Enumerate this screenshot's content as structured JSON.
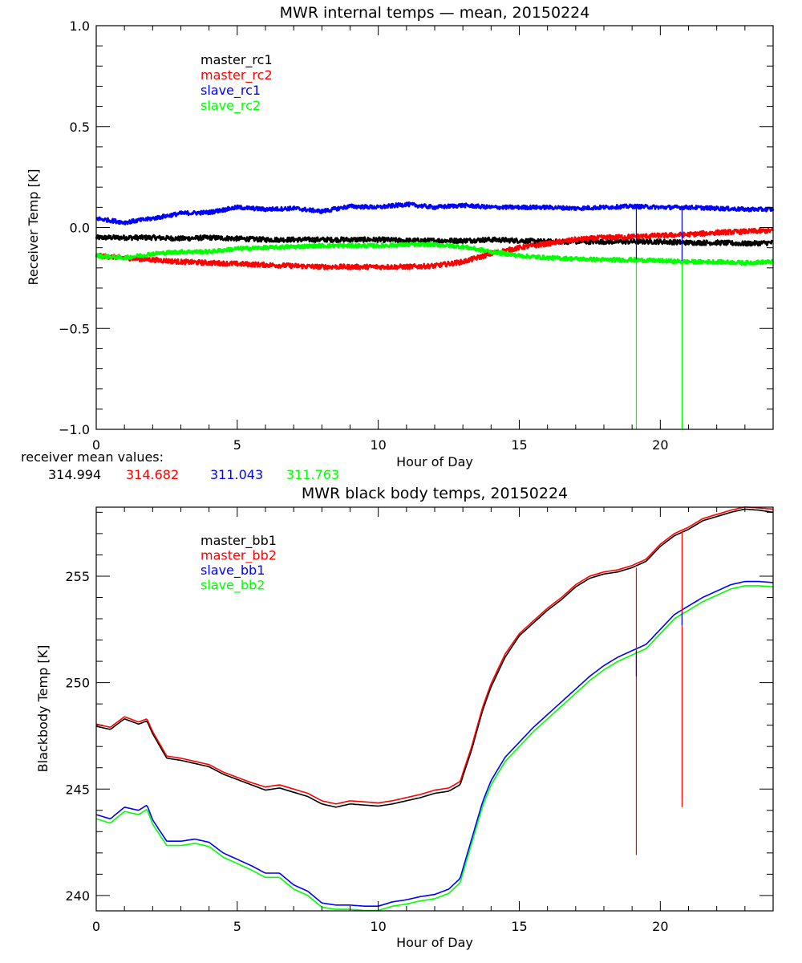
{
  "chart_data": [
    {
      "type": "line",
      "title": "MWR internal temps — mean, 20150224",
      "xlabel": "Hour of Day",
      "ylabel": "Receiver Temp [K]",
      "xlim": [
        0,
        24
      ],
      "ylim": [
        -1.0,
        1.0
      ],
      "x_ticks": [
        0,
        5,
        10,
        15,
        20
      ],
      "x_tick_labels": [
        "0",
        "5",
        "10",
        "15",
        "20"
      ],
      "x_minor_step": 1,
      "y_ticks": [
        -1.0,
        -0.5,
        0.0,
        0.5,
        1.0
      ],
      "y_tick_labels": [
        "−1.0",
        "−0.5",
        "0.0",
        "0.5",
        "1.0"
      ],
      "y_minor_step": 0.1,
      "grid": false,
      "legend_position": "top-left inside",
      "x": [
        0,
        1,
        2,
        3,
        4,
        5,
        6,
        7,
        8,
        9,
        10,
        11,
        12,
        13,
        14,
        15,
        16,
        17,
        18,
        19,
        20,
        21,
        22,
        23,
        24
      ],
      "series": [
        {
          "name": "master_rc1",
          "color": "#000000",
          "noise": 0.012,
          "values": [
            -0.05,
            -0.05,
            -0.05,
            -0.055,
            -0.05,
            -0.055,
            -0.06,
            -0.06,
            -0.06,
            -0.06,
            -0.06,
            -0.065,
            -0.065,
            -0.065,
            -0.06,
            -0.065,
            -0.07,
            -0.07,
            -0.07,
            -0.07,
            -0.07,
            -0.075,
            -0.075,
            -0.08,
            -0.075
          ]
        },
        {
          "name": "master_rc2",
          "color": "#ff0000",
          "noise": 0.012,
          "values": [
            -0.14,
            -0.15,
            -0.16,
            -0.17,
            -0.175,
            -0.18,
            -0.185,
            -0.19,
            -0.195,
            -0.195,
            -0.195,
            -0.195,
            -0.19,
            -0.17,
            -0.13,
            -0.1,
            -0.08,
            -0.06,
            -0.05,
            -0.045,
            -0.04,
            -0.035,
            -0.025,
            -0.02,
            -0.015
          ]
        },
        {
          "name": "slave_rc1",
          "color": "#0000ff",
          "noise": 0.01,
          "values": [
            0.045,
            0.025,
            0.045,
            0.07,
            0.075,
            0.1,
            0.09,
            0.095,
            0.08,
            0.105,
            0.1,
            0.115,
            0.1,
            0.11,
            0.1,
            0.1,
            0.1,
            0.095,
            0.1,
            0.105,
            0.1,
            0.1,
            0.095,
            0.09,
            0.09
          ]
        },
        {
          "name": "slave_rc2",
          "color": "#00ff00",
          "noise": 0.01,
          "values": [
            -0.14,
            -0.15,
            -0.13,
            -0.12,
            -0.12,
            -0.105,
            -0.1,
            -0.095,
            -0.09,
            -0.09,
            -0.09,
            -0.085,
            -0.085,
            -0.095,
            -0.12,
            -0.14,
            -0.15,
            -0.155,
            -0.16,
            -0.16,
            -0.165,
            -0.17,
            -0.17,
            -0.175,
            -0.17
          ]
        }
      ],
      "spikes": [
        {
          "hour": 19.15,
          "color": "#00ff00",
          "from": -0.16,
          "to": -1.0
        },
        {
          "hour": 19.15,
          "color": "#0000ff",
          "from": 0.1,
          "to": -0.16
        },
        {
          "hour": 20.77,
          "color": "#00ff00",
          "from": -0.165,
          "to": -1.0
        },
        {
          "hour": 20.77,
          "color": "#0000ff",
          "from": 0.1,
          "to": -0.165
        }
      ],
      "annotation": {
        "label": "receiver mean values:",
        "values": [
          {
            "text": "314.994",
            "color": "#000000"
          },
          {
            "text": "314.682",
            "color": "#ff0000"
          },
          {
            "text": "311.043",
            "color": "#0000ff"
          },
          {
            "text": "311.763",
            "color": "#00ff00"
          }
        ]
      }
    },
    {
      "type": "line",
      "title": "MWR black body temps, 20150224",
      "xlabel": "Hour of Day",
      "ylabel": "Blackbody Temp [K]",
      "xlim": [
        0,
        24
      ],
      "ylim": [
        239.28,
        258.24
      ],
      "x_ticks": [
        0,
        5,
        10,
        15,
        20
      ],
      "x_tick_labels": [
        "0",
        "5",
        "10",
        "15",
        "20"
      ],
      "x_minor_step": 1,
      "y_ticks": [
        240,
        245,
        250,
        255
      ],
      "y_tick_labels": [
        "240",
        "245",
        "250",
        "255"
      ],
      "y_minor_step": 1,
      "grid": false,
      "legend_position": "top-left inside",
      "x": [
        0,
        0.5,
        1,
        1.5,
        1.8,
        2,
        2.5,
        3,
        3.5,
        4,
        4.5,
        5,
        5.5,
        6,
        6.5,
        7,
        7.5,
        8,
        8.5,
        9,
        9.5,
        10,
        10.5,
        11,
        11.5,
        12,
        12.5,
        12.9,
        13.3,
        13.7,
        14,
        14.5,
        15,
        15.5,
        16,
        16.5,
        17,
        17.5,
        18,
        18.5,
        19,
        19.5,
        20,
        20.5,
        21,
        21.5,
        22,
        22.5,
        23,
        23.5,
        24
      ],
      "series": [
        {
          "name": "master_bb1",
          "color": "#000000",
          "values": [
            247.95,
            247.8,
            248.3,
            248.05,
            248.2,
            247.6,
            246.45,
            246.35,
            246.2,
            246.05,
            245.7,
            245.45,
            245.2,
            244.95,
            245.05,
            244.85,
            244.65,
            244.3,
            244.15,
            244.3,
            244.25,
            244.2,
            244.3,
            244.45,
            244.6,
            244.8,
            244.9,
            245.2,
            246.8,
            248.7,
            249.8,
            251.2,
            252.2,
            252.8,
            253.4,
            253.9,
            254.5,
            254.9,
            255.1,
            255.2,
            255.4,
            255.7,
            256.4,
            256.9,
            257.2,
            257.6,
            257.8,
            258.0,
            258.15,
            258.1,
            258.0
          ]
        },
        {
          "name": "master_bb2",
          "color": "#ff0000",
          "values": [
            248.05,
            247.9,
            248.4,
            248.15,
            248.3,
            247.7,
            246.55,
            246.45,
            246.3,
            246.15,
            245.8,
            245.55,
            245.3,
            245.1,
            245.2,
            245.0,
            244.8,
            244.45,
            244.3,
            244.45,
            244.4,
            244.35,
            244.45,
            244.6,
            244.75,
            244.95,
            245.05,
            245.35,
            246.95,
            248.85,
            249.95,
            251.35,
            252.3,
            252.9,
            253.5,
            254.0,
            254.6,
            255.0,
            255.2,
            255.3,
            255.5,
            255.8,
            256.5,
            257.0,
            257.3,
            257.7,
            257.9,
            258.1,
            258.25,
            258.2,
            258.15
          ]
        },
        {
          "name": "slave_bb1",
          "color": "#0000ff",
          "values": [
            243.8,
            243.6,
            244.15,
            244.0,
            244.25,
            243.55,
            242.55,
            242.55,
            242.65,
            242.5,
            242.0,
            241.7,
            241.4,
            241.05,
            241.05,
            240.5,
            240.2,
            239.65,
            239.55,
            239.55,
            239.5,
            239.5,
            239.7,
            239.8,
            239.95,
            240.05,
            240.3,
            240.8,
            242.6,
            244.4,
            245.4,
            246.5,
            247.2,
            247.9,
            248.5,
            249.1,
            249.7,
            250.3,
            250.8,
            251.2,
            251.5,
            251.8,
            252.5,
            253.2,
            253.6,
            254.0,
            254.3,
            254.6,
            254.75,
            254.75,
            254.7
          ]
        },
        {
          "name": "slave_bb2",
          "color": "#00ff00",
          "values": [
            243.6,
            243.4,
            243.95,
            243.8,
            244.05,
            243.35,
            242.35,
            242.35,
            242.45,
            242.3,
            241.8,
            241.5,
            241.2,
            240.85,
            240.85,
            240.3,
            240.0,
            239.45,
            239.35,
            239.35,
            239.3,
            239.3,
            239.5,
            239.6,
            239.75,
            239.85,
            240.1,
            240.6,
            242.4,
            244.2,
            245.2,
            246.3,
            247.0,
            247.7,
            248.3,
            248.9,
            249.5,
            250.1,
            250.6,
            251.0,
            251.3,
            251.6,
            252.3,
            253.0,
            253.4,
            253.8,
            254.1,
            254.4,
            254.55,
            254.55,
            254.5
          ]
        }
      ],
      "spikes": [
        {
          "hour": 19.15,
          "color": "#ff0000",
          "from": 255.4,
          "to": 241.9
        },
        {
          "hour": 19.15,
          "color": "#0000ff",
          "from": 251.5,
          "to": 250.3
        },
        {
          "hour": 20.77,
          "color": "#ff0000",
          "from": 257.1,
          "to": 244.15
        },
        {
          "hour": 20.77,
          "color": "#0000ff",
          "from": 253.3,
          "to": 252.7
        }
      ]
    }
  ]
}
